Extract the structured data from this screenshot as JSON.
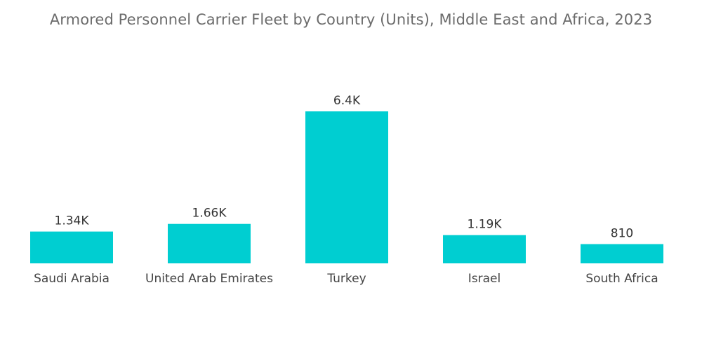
{
  "chart_data": {
    "type": "bar",
    "title": "Armored Personnel Carrier Fleet by Country (Units), Middle East and Africa, 2023",
    "categories": [
      "Saudi Arabia",
      "United Arab Emirates",
      "Turkey",
      "Israel",
      "South Africa"
    ],
    "values": [
      1340,
      1660,
      6400,
      1190,
      810
    ],
    "value_labels": [
      "1.34K",
      "1.66K",
      "6.4K",
      "1.19K",
      "810"
    ],
    "xlabel": "",
    "ylabel": "",
    "ylim": [
      0,
      6400
    ],
    "grid": false,
    "legend": "none",
    "bar_color": "#00ced1"
  }
}
